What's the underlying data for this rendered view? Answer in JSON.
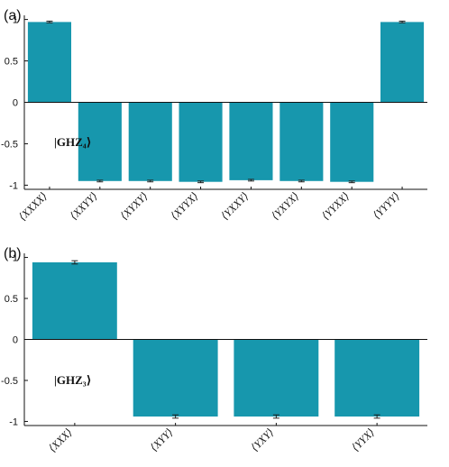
{
  "colors": {
    "bar": "#1797ad",
    "axis": "#111111",
    "errorbar": "#222222"
  },
  "chart_data": [
    {
      "type": "bar",
      "panel_label": "(a)",
      "state_label": "|GHZ₄⟩",
      "categories": [
        "⟨XXXX⟩",
        "⟨XXYY⟩",
        "⟨XYXY⟩",
        "⟨XYYX⟩",
        "⟨YXXY⟩",
        "⟨YXYX⟩",
        "⟨YYXX⟩",
        "⟨YYYY⟩"
      ],
      "values": [
        0.97,
        -0.95,
        -0.95,
        -0.96,
        -0.94,
        -0.95,
        -0.96,
        0.97
      ],
      "errors": [
        0.01,
        0.01,
        0.01,
        0.01,
        0.01,
        0.01,
        0.01,
        0.01
      ],
      "ylim": [
        -1.05,
        1.05
      ],
      "yticks": [
        1,
        0.5,
        0,
        -0.5,
        -1
      ],
      "ytick_labels": [
        "1",
        "0.5",
        "0",
        "-0.5",
        "-1"
      ]
    },
    {
      "type": "bar",
      "panel_label": "(b)",
      "state_label": "|GHZ₃⟩",
      "categories": [
        "⟨XXX⟩",
        "⟨XYY⟩",
        "⟨YXY⟩",
        "⟨YYX⟩"
      ],
      "values": [
        0.94,
        -0.94,
        -0.94,
        -0.94
      ],
      "errors": [
        0.02,
        0.02,
        0.02,
        0.02
      ],
      "ylim": [
        -1.05,
        1.05
      ],
      "yticks": [
        1,
        0.5,
        0,
        -0.5,
        -1
      ],
      "ytick_labels": [
        "1",
        "0.5",
        "0",
        "-0.5",
        "-1"
      ]
    }
  ]
}
